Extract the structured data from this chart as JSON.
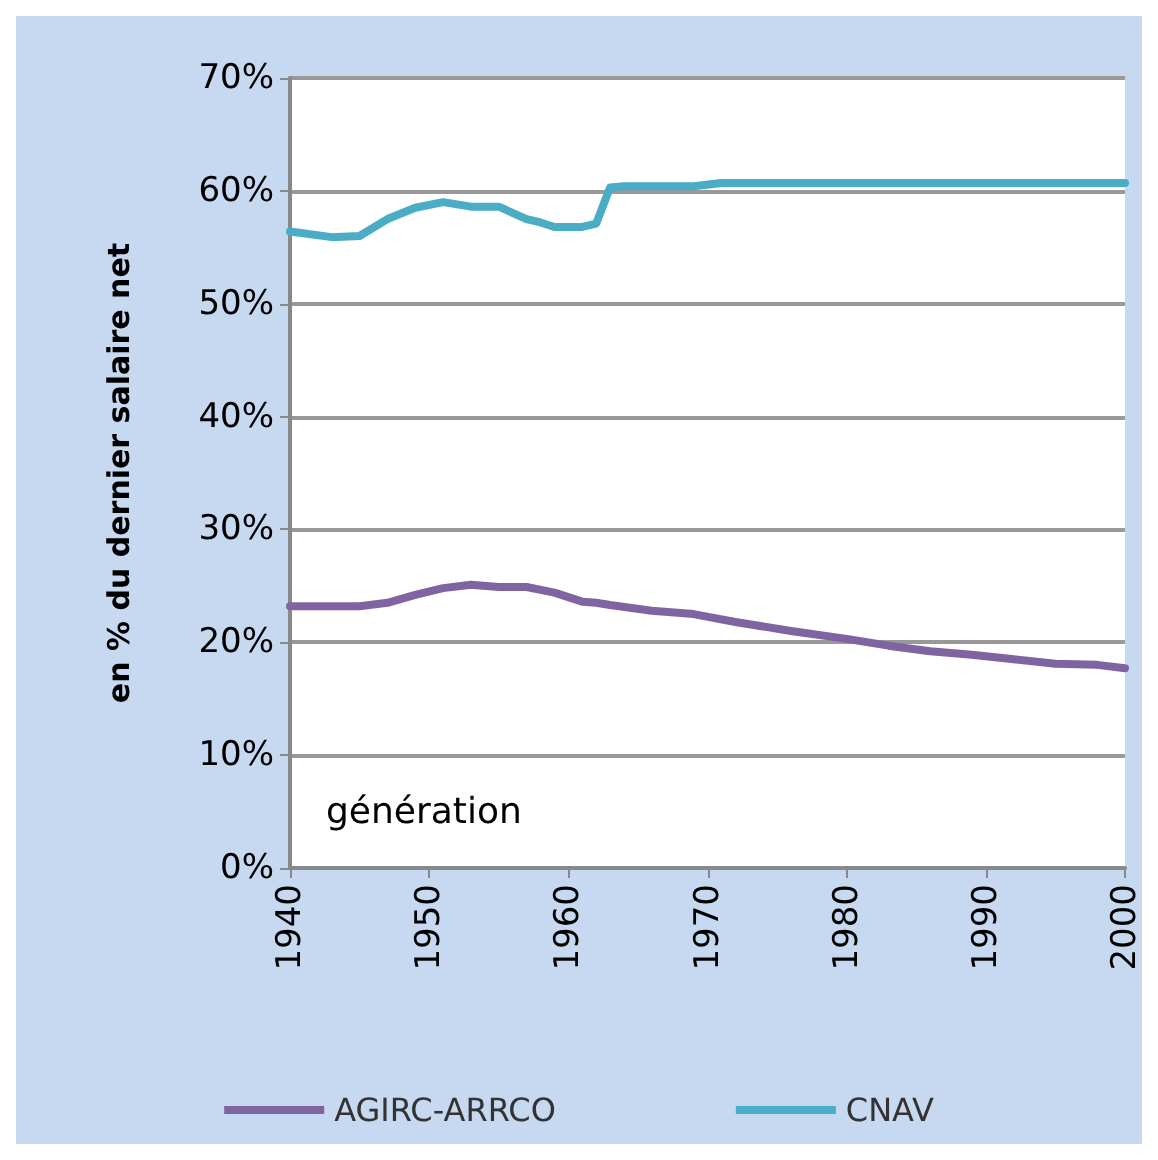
{
  "chart_data": {
    "type": "line",
    "ylabel": "en % du dernier salaire net",
    "annotations": [
      "génération"
    ],
    "x": [
      1940,
      1943,
      1945,
      1947,
      1949,
      1951,
      1953,
      1955,
      1957,
      1958,
      1959,
      1961,
      1962,
      1963,
      1964,
      1969,
      1971,
      1980,
      1990,
      2000
    ],
    "series": [
      {
        "name": "AGIRC-ARRCO",
        "color": "#8064a2",
        "x": [
          1940,
          1945,
          1947,
          1949,
          1951,
          1953,
          1955,
          1957,
          1959,
          1961,
          1962,
          1963,
          1966,
          1969,
          1972,
          1976,
          1980,
          1983,
          1986,
          1989,
          1992,
          1995,
          1998,
          2000
        ],
        "values": [
          23.2,
          23.2,
          23.5,
          24.2,
          24.8,
          25.1,
          24.9,
          24.9,
          24.4,
          23.6,
          23.5,
          23.3,
          22.8,
          22.5,
          21.8,
          21.0,
          20.3,
          19.7,
          19.2,
          18.9,
          18.5,
          18.1,
          18.0,
          17.7
        ]
      },
      {
        "name": "CNAV",
        "color": "#4bacc6",
        "values": [
          56.4,
          55.9,
          56.0,
          57.5,
          58.5,
          59.0,
          58.6,
          58.6,
          57.5,
          57.2,
          56.8,
          56.8,
          57.1,
          60.3,
          60.4,
          60.4,
          60.7,
          60.7,
          60.7,
          60.7
        ]
      }
    ],
    "xlim": [
      1940,
      2000
    ],
    "xticks": [
      1940,
      1950,
      1960,
      1970,
      1980,
      1990,
      2000
    ],
    "ylim": [
      0,
      70
    ],
    "yticks": [
      {
        "value": 0,
        "label": "0%"
      },
      {
        "value": 10,
        "label": "10%"
      },
      {
        "value": 20,
        "label": "20%"
      },
      {
        "value": 30,
        "label": "30%"
      },
      {
        "value": 40,
        "label": "40%"
      },
      {
        "value": 50,
        "label": "50%"
      },
      {
        "value": 60,
        "label": "60%"
      },
      {
        "value": 70,
        "label": "70%"
      }
    ],
    "grid": "y",
    "legend": "bottom",
    "marker": "none",
    "line_style": "solid"
  }
}
